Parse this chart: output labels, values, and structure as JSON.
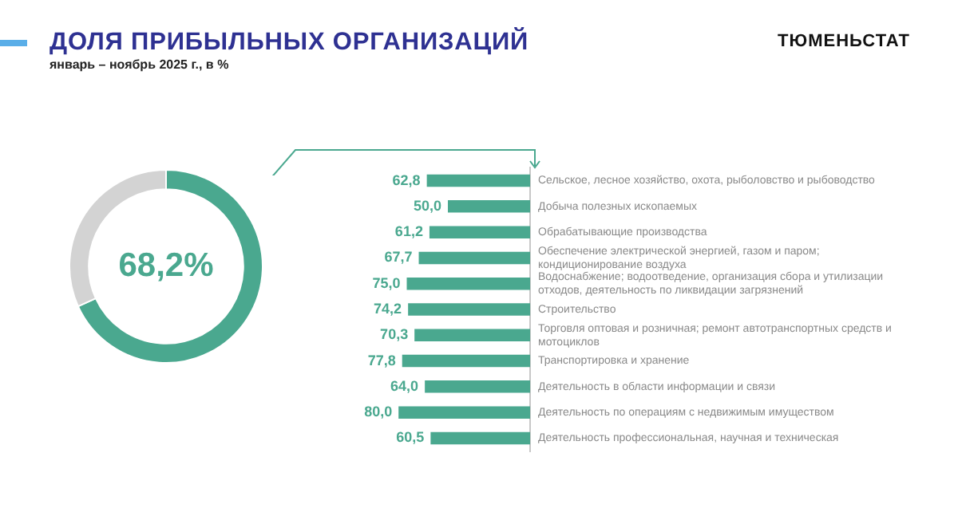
{
  "chart_data": [
    {
      "type": "donut",
      "title": "ДОЛЯ ПРИБЫЛЬНЫХ ОРГАНИЗАЦИЙ",
      "subtitle": "январь – ноябрь 2025 г., в %",
      "annotations": [
        "ТЮМЕНЬСТАТ"
      ],
      "categories": [
        null,
        null
      ],
      "values": [
        68.2,
        31.8
      ],
      "colors": [
        "#4aa88f",
        "#d3d3d3"
      ],
      "value_labels": [
        "68,2%",
        null
      ]
    },
    {
      "type": "bar",
      "orientation": "horizontal",
      "color": "#4aa88f",
      "categories": [
        "Сельское, лесное хозяйство, охота, рыболовство и рыбоводство",
        "Добыча полезных ископаемых",
        "Обрабатывающие производства",
        "Обеспечение электрической энергией, газом и паром; кондиционирование воздуха",
        "Водоснабжение; водоотведение, организация сбора и утилизации отходов, деятельность по ликвидации загрязнений",
        "Строительство",
        "Торговля оптовая и розничная; ремонт автотранспортных средств и мотоциклов",
        "Транспортировка и хранение",
        "Деятельность в области информации и связи",
        "Деятельность по операциям с недвижимым имуществом",
        "Деятельность профессиональная, научная и техническая"
      ],
      "values": [
        62.8,
        50.0,
        61.2,
        67.7,
        75.0,
        74.2,
        70.3,
        77.8,
        64.0,
        80.0,
        60.5
      ],
      "value_labels": [
        "62,8",
        "50,0",
        "61,2",
        "67,7",
        "75,0",
        "74,2",
        "70,3",
        "77,8",
        "64,0",
        "80,0",
        "60,5"
      ]
    }
  ]
}
